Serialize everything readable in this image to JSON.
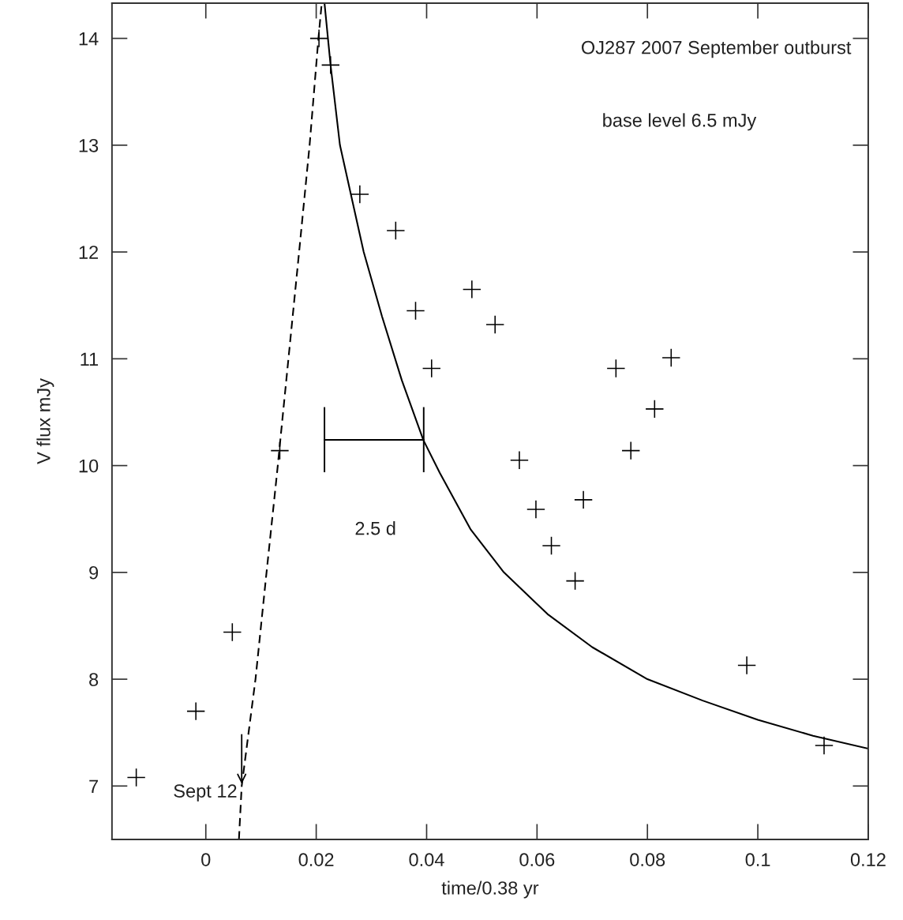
{
  "chart_data": {
    "type": "scatter",
    "xlabel": "time/0.38 yr",
    "ylabel": "V flux mJy",
    "xlim": [
      -0.017,
      0.12
    ],
    "ylim": [
      6.5,
      14.33
    ],
    "xticks": [
      0,
      0.02,
      0.04,
      0.06,
      0.08,
      0.1,
      0.12
    ],
    "yticks": [
      7,
      8,
      9,
      10,
      11,
      12,
      13,
      14
    ],
    "grid": false,
    "legend": false,
    "marker": "cross",
    "series": [
      {
        "color": "#000000",
        "x": [
          -0.0126,
          -0.0018,
          0.0048,
          0.0134,
          0.0205,
          0.0226,
          0.0279,
          0.0344,
          0.038,
          0.0409,
          0.0482,
          0.0524,
          0.0568,
          0.0598,
          0.0626,
          0.0669,
          0.0684,
          0.0743,
          0.077,
          0.0813,
          0.0843,
          0.098,
          0.112
        ],
        "values": [
          7.08,
          7.7,
          8.44,
          10.14,
          14.0,
          13.75,
          12.54,
          12.2,
          11.45,
          10.91,
          11.65,
          11.32,
          10.05,
          9.59,
          9.25,
          8.92,
          9.68,
          10.91,
          10.14,
          10.53,
          11.01,
          8.13,
          7.38
        ]
      },
      {
        "type": "line",
        "color": "#000000",
        "line_style": "dashed",
        "marker": "none",
        "x": [
          0.006,
          0.0065,
          0.009,
          0.011,
          0.0129,
          0.0169,
          0.0188,
          0.0204,
          0.021
        ],
        "values": [
          6.5,
          7.0,
          8.0,
          9.0,
          9.93,
          12.0,
          13.0,
          14.0,
          14.33
        ]
      },
      {
        "type": "line",
        "color": "#000000",
        "line_style": "solid",
        "marker": "none",
        "x": [
          0.0215,
          0.0226,
          0.0243,
          0.0286,
          0.0319,
          0.0355,
          0.0394,
          0.0424,
          0.048,
          0.054,
          0.0619,
          0.07,
          0.08,
          0.09,
          0.1,
          0.11,
          0.12
        ],
        "values": [
          14.33,
          13.75,
          13.0,
          12.0,
          11.4,
          10.8,
          10.24,
          9.93,
          9.4,
          9.0,
          8.61,
          8.3,
          8.0,
          7.8,
          7.62,
          7.47,
          7.35
        ]
      }
    ],
    "annotations": [
      "OJ287 2007 September outburst",
      "base level 6.5 mJy",
      "2.5 d",
      {
        "text": "Sept 12",
        "x": 0.0065,
        "y": 7.0
      }
    ]
  }
}
